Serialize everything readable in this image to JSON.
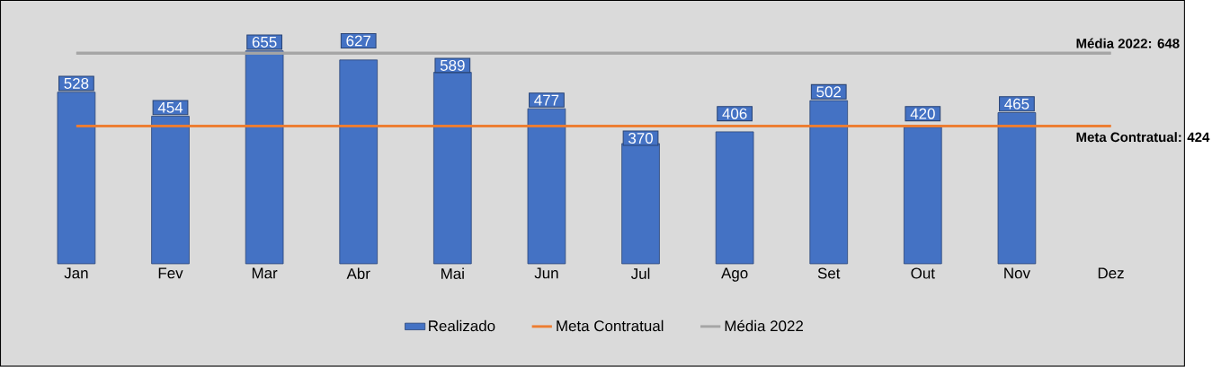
{
  "chart_data": {
    "type": "bar",
    "categories": [
      "Jan",
      "Fev",
      "Mar",
      "Abr",
      "Mai",
      "Jun",
      "Jul",
      "Ago",
      "Set",
      "Out",
      "Nov",
      "Dez"
    ],
    "series": [
      {
        "name": "Realizado",
        "color": "#4472c4",
        "values": [
          528,
          454,
          655,
          627,
          589,
          477,
          370,
          406,
          502,
          420,
          465,
          null
        ],
        "value_labels": [
          "528",
          "454",
          "655",
          "627",
          "589",
          "477",
          "370",
          "406",
          "502",
          "420",
          "465",
          null
        ]
      },
      {
        "name": "Meta Contratual",
        "type": "line",
        "color": "#ed7d31",
        "values": [
          424,
          424,
          424,
          424,
          424,
          424,
          424,
          424,
          424,
          424,
          424,
          424
        ]
      },
      {
        "name": "Média 2022",
        "type": "line",
        "color": "#a5a5a5",
        "values": [
          648,
          648,
          648,
          648,
          648,
          648,
          648,
          648,
          648,
          648,
          648,
          648
        ]
      }
    ],
    "annotations": [
      "Média 2022: 648",
      "Meta Contratual: 424"
    ],
    "legend": "bottom",
    "tick_labels": "x",
    "grid": false
  }
}
